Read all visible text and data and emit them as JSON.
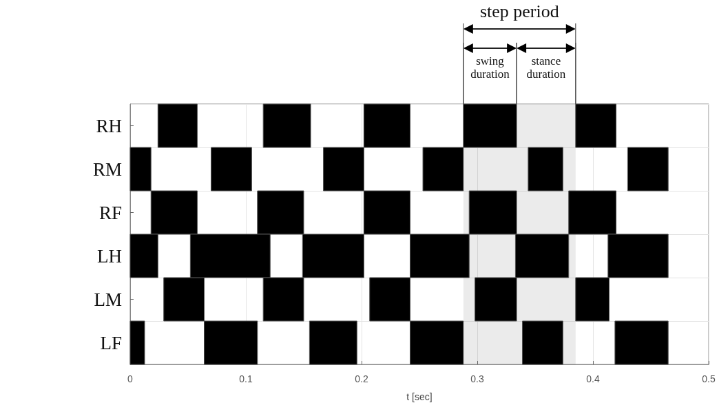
{
  "chart_data": {
    "type": "bar",
    "orientation": "horizontal",
    "xlabel": "t [sec]",
    "categories": [
      "RH",
      "RM",
      "RF",
      "LH",
      "LM",
      "LF"
    ],
    "series": [
      {
        "color": "#000000",
        "base": [
          0.024,
          0,
          0.018,
          0,
          0.029,
          0
        ],
        "values": [
          0.034,
          0.018,
          0.04,
          0.024,
          0.035,
          0.0125
        ]
      },
      {
        "color": "#000000",
        "base": [
          0.115,
          0.07,
          0.11,
          0.052,
          0.115,
          0.064
        ],
        "values": [
          0.041,
          0.035,
          0.04,
          0.069,
          0.035,
          0.046
        ]
      },
      {
        "color": "#000000",
        "base": [
          0.202,
          0.167,
          0.202,
          0.149,
          0.207,
          0.155
        ],
        "values": [
          0.04,
          0.035,
          0.04,
          0.053,
          0.035,
          0.041
        ]
      },
      {
        "color": "#000000",
        "base": [
          0.288,
          0.253,
          0.293,
          0.242,
          0.298,
          0.242
        ],
        "values": [
          0.046,
          0.035,
          0.041,
          0.051,
          0.036,
          0.046
        ]
      },
      {
        "color": "#000000",
        "base": [
          0.385,
          0.344,
          0.379,
          0.333,
          0.385,
          0.339
        ],
        "values": [
          0.035,
          0.03,
          0.041,
          0.046,
          0.029,
          0.035
        ]
      },
      {
        "color": "#000000",
        "base": [
          null,
          0.43,
          null,
          0.413,
          null,
          0.419
        ],
        "values": [
          null,
          0.035,
          null,
          0.052,
          null,
          0.046
        ]
      }
    ],
    "xlim": [
      0,
      0.5
    ],
    "xticks": [
      0,
      0.1,
      0.2,
      0.3,
      0.4,
      0.5
    ],
    "grid": true,
    "bands": [
      {
        "axis": "x",
        "from": 0.288,
        "to": 0.385,
        "label": "step period"
      },
      {
        "axis": "x",
        "from": 0.288,
        "to": 0.334,
        "label": "swing duration"
      },
      {
        "axis": "x",
        "from": 0.334,
        "to": 0.385,
        "label": "stance duration"
      }
    ]
  }
}
